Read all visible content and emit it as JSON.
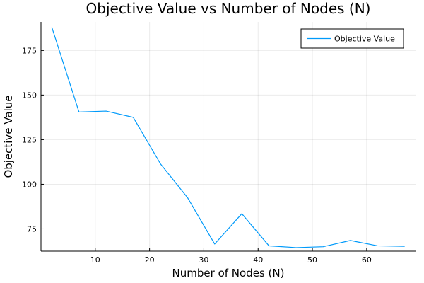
{
  "chart_data": {
    "type": "line",
    "title": "Objective Value vs Number of Nodes (N)",
    "xlabel": "Number of Nodes (N)",
    "ylabel": "Objective Value",
    "x": [
      2,
      7,
      12,
      17,
      22,
      27,
      32,
      37,
      42,
      47,
      52,
      57,
      62,
      67
    ],
    "series": [
      {
        "name": "Objective Value",
        "color": "#009AFA",
        "values": [
          188,
          140.5,
          141,
          137.5,
          111.5,
          92.5,
          66.5,
          83.5,
          65.5,
          64.5,
          65,
          68.5,
          65.5,
          65.2
        ]
      }
    ],
    "xlim": [
      0,
      69
    ],
    "ylim": [
      62.5,
      191
    ],
    "xticks": [
      10,
      20,
      30,
      40,
      50,
      60
    ],
    "yticks": [
      75,
      100,
      125,
      150,
      175
    ],
    "grid": true,
    "legend_position": "top-right"
  }
}
